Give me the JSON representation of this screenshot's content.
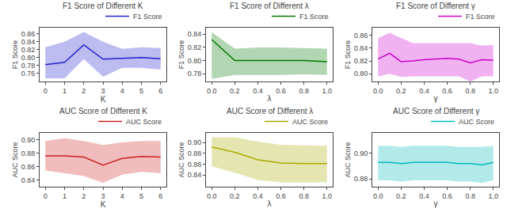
{
  "chart_data": [
    {
      "type": "line",
      "title": "F1 Score of Different K",
      "xlabel": "K",
      "ylabel": "F1 Score",
      "x": [
        0,
        1,
        2,
        3,
        4,
        5,
        6
      ],
      "series": [
        {
          "name": "F1 Score",
          "color": "#2222cc",
          "values": [
            0.782,
            0.788,
            0.832,
            0.796,
            0.798,
            0.8,
            0.797
          ],
          "upper": [
            0.826,
            0.84,
            0.864,
            0.84,
            0.822,
            0.826,
            0.824
          ],
          "lower": [
            0.748,
            0.748,
            0.796,
            0.752,
            0.774,
            0.774,
            0.77
          ]
        }
      ],
      "xlim": [
        -0.3,
        6.3
      ],
      "ylim": [
        0.74,
        0.875
      ],
      "xticks": [
        0,
        1,
        2,
        3,
        4,
        5,
        6
      ],
      "yticks": [
        0.76,
        0.78,
        {
          "value": 0.8,
          "label": "0.80"
        },
        0.82,
        0.84,
        0.86
      ],
      "grid": false,
      "legend": "upper right"
    },
    {
      "type": "line",
      "title": "F1 Score of Different λ",
      "xlabel": "λ",
      "ylabel": "F1 Score",
      "x": [
        0.0,
        0.2,
        0.4,
        0.6,
        0.8,
        1.0
      ],
      "series": [
        {
          "name": "F1 Score",
          "color": "#007700",
          "values": [
            0.832,
            0.8,
            0.8,
            0.8,
            0.8,
            0.798
          ],
          "upper": [
            0.843,
            0.818,
            0.82,
            0.82,
            0.819,
            0.818
          ],
          "lower": [
            0.772,
            0.778,
            0.778,
            0.778,
            0.779,
            0.778
          ]
        }
      ],
      "xlim": [
        -0.05,
        1.05
      ],
      "ylim": [
        0.768,
        0.85
      ],
      "xticks": [
        {
          "value": 0,
          "label": "0.0"
        },
        0.2,
        0.4,
        0.6,
        0.8,
        {
          "value": 1,
          "label": "1.0"
        }
      ],
      "yticks": [
        0.78,
        {
          "value": 0.8,
          "label": "0.80"
        },
        0.82,
        0.84
      ],
      "grid": false,
      "legend": "upper right"
    },
    {
      "type": "line",
      "title": "F1 Score of Different γ",
      "xlabel": "γ",
      "ylabel": "F1 Score",
      "x": [
        0.0,
        0.1,
        0.2,
        0.3,
        0.4,
        0.5,
        0.6,
        0.7,
        0.8,
        0.9,
        1.0
      ],
      "series": [
        {
          "name": "F1 Score",
          "color": "#cc00cc",
          "values": [
            0.823,
            0.832,
            0.819,
            0.82,
            0.822,
            0.823,
            0.824,
            0.823,
            0.817,
            0.822,
            0.821
          ],
          "upper": [
            0.856,
            0.864,
            0.856,
            0.848,
            0.848,
            0.848,
            0.848,
            0.848,
            0.848,
            0.844,
            0.845
          ],
          "lower": [
            0.796,
            0.8,
            0.795,
            0.796,
            0.796,
            0.796,
            0.796,
            0.796,
            0.788,
            0.796,
            0.796
          ]
        }
      ],
      "xlim": [
        -0.05,
        1.05
      ],
      "ylim": [
        0.788,
        0.872
      ],
      "xticks": [
        {
          "value": 0,
          "label": "0.0"
        },
        0.2,
        0.4,
        0.6,
        0.8,
        {
          "value": 1,
          "label": "1.0"
        }
      ],
      "yticks": [
        {
          "value": 0.8,
          "label": "0.80"
        },
        0.82,
        0.84,
        0.86
      ],
      "grid": false,
      "legend": "upper right"
    },
    {
      "type": "line",
      "title": "AUC Score of Different K",
      "xlabel": "K",
      "ylabel": "AUC Score",
      "x": [
        0,
        1,
        2,
        3,
        4,
        5,
        6
      ],
      "series": [
        {
          "name": "AUC Score",
          "color": "#cc2222",
          "values": [
            0.876,
            0.876,
            0.874,
            0.862,
            0.872,
            0.875,
            0.874
          ],
          "upper": [
            0.898,
            0.902,
            0.898,
            0.892,
            0.896,
            0.898,
            0.898
          ],
          "lower": [
            0.854,
            0.85,
            0.846,
            0.836,
            0.848,
            0.852,
            0.85
          ]
        }
      ],
      "xlim": [
        -0.3,
        6.3
      ],
      "ylim": [
        0.83,
        0.91
      ],
      "xticks": [
        0,
        1,
        2,
        3,
        4,
        5,
        6
      ],
      "yticks": [
        0.84,
        0.86,
        0.88,
        {
          "value": 0.9,
          "label": "0.90"
        }
      ],
      "grid": false,
      "legend": "upper right"
    },
    {
      "type": "line",
      "title": "AUC Score of Different λ",
      "xlabel": "λ",
      "ylabel": "AUC Score",
      "x": [
        0.0,
        0.2,
        0.4,
        0.6,
        0.8,
        1.0
      ],
      "series": [
        {
          "name": "AUC Score",
          "color": "#aaaa00",
          "values": [
            0.892,
            0.882,
            0.868,
            0.862,
            0.861,
            0.861
          ],
          "upper": [
            0.91,
            0.91,
            0.902,
            0.896,
            0.895,
            0.894
          ],
          "lower": [
            0.856,
            0.844,
            0.83,
            0.826,
            0.826,
            0.826
          ]
        }
      ],
      "xlim": [
        -0.05,
        1.05
      ],
      "ylim": [
        0.818,
        0.918
      ],
      "xticks": [
        {
          "value": 0,
          "label": "0.0"
        },
        0.2,
        0.4,
        0.6,
        0.8,
        {
          "value": 1,
          "label": "1.0"
        }
      ],
      "yticks": [
        0.84,
        0.86,
        0.88,
        {
          "value": 0.9,
          "label": "0.90"
        }
      ],
      "grid": false,
      "legend": "upper right"
    },
    {
      "type": "line",
      "title": "AUC Score of Different γ",
      "xlabel": "γ",
      "ylabel": "AUC Score",
      "x": [
        0.0,
        0.1,
        0.2,
        0.3,
        0.4,
        0.5,
        0.6,
        0.7,
        0.8,
        0.9,
        1.0
      ],
      "series": [
        {
          "name": "AUC Score",
          "color": "#00bbbb",
          "values": [
            0.893,
            0.893,
            0.892,
            0.893,
            0.893,
            0.893,
            0.893,
            0.892,
            0.892,
            0.891,
            0.893
          ],
          "upper": [
            0.906,
            0.906,
            0.905,
            0.906,
            0.906,
            0.906,
            0.906,
            0.905,
            0.905,
            0.905,
            0.906
          ],
          "lower": [
            0.879,
            0.879,
            0.878,
            0.879,
            0.879,
            0.879,
            0.879,
            0.878,
            0.878,
            0.877,
            0.879
          ]
        }
      ],
      "xlim": [
        -0.05,
        1.05
      ],
      "ylim": [
        0.874,
        0.916
      ],
      "xticks": [
        {
          "value": 0,
          "label": "0.0"
        },
        0.2,
        0.4,
        0.6,
        0.8,
        {
          "value": 1,
          "label": "1.0"
        }
      ],
      "yticks": [
        0.88,
        {
          "value": 0.9,
          "label": "0.90"
        }
      ],
      "grid": false,
      "legend": "upper right"
    }
  ]
}
